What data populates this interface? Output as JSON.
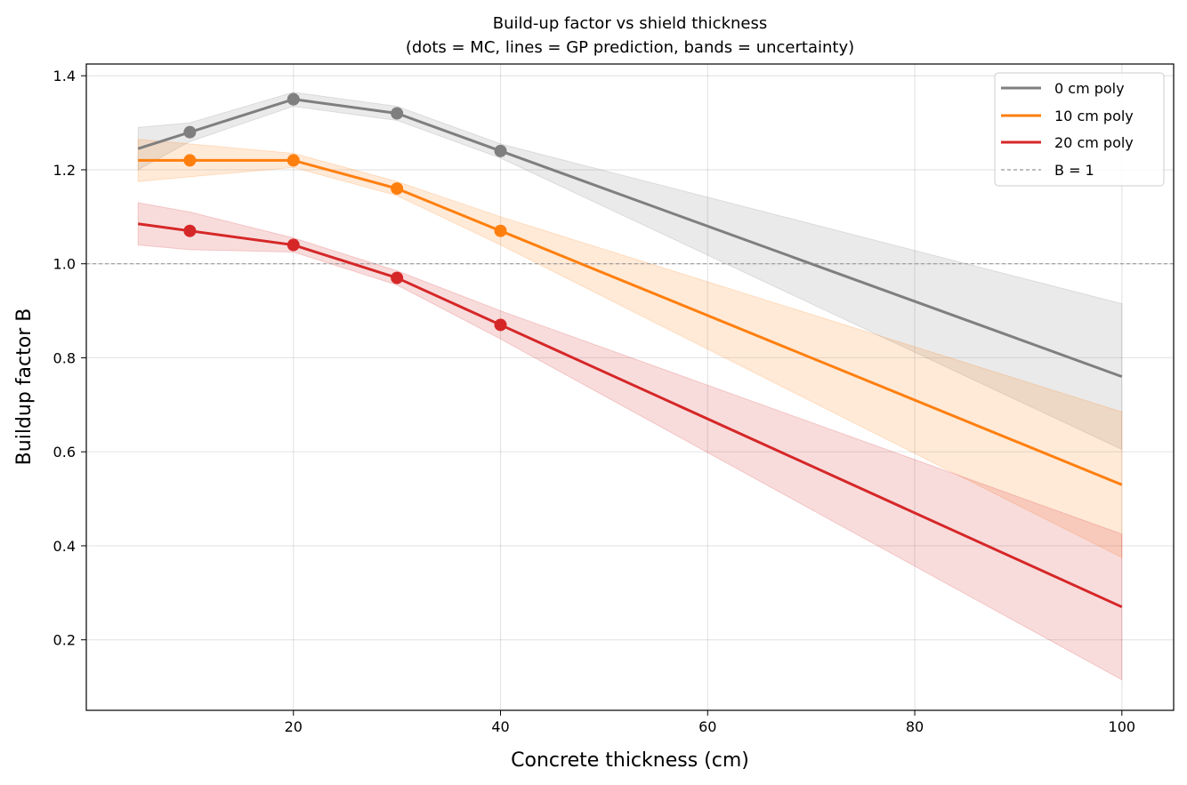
{
  "chart_data": {
    "type": "line",
    "title": "Build-up factor vs shield thickness",
    "subtitle": "(dots = MC, lines = GP prediction, bands = uncertainty)",
    "xlabel": "Concrete thickness (cm)",
    "ylabel": "Buildup factor B",
    "xlim": [
      0,
      105
    ],
    "ylim": [
      0.05,
      1.425
    ],
    "xticks": [
      20,
      40,
      60,
      80,
      100
    ],
    "yticks": [
      0.2,
      0.4,
      0.6,
      0.8,
      1.0,
      1.2,
      1.4
    ],
    "xtick_labels": [
      "20",
      "40",
      "60",
      "80",
      "100"
    ],
    "ytick_labels": [
      "0.2",
      "0.4",
      "0.6",
      "0.8",
      "1.0",
      "1.2",
      "1.4"
    ],
    "grid": true,
    "legend_position": "top-right",
    "reference_line": {
      "label": "B = 1",
      "value": 1.0,
      "color": "#999999"
    },
    "series": [
      {
        "name": "0 cm poly",
        "legend_label": "0 cm poly",
        "color": "#7f7f7f",
        "gp_x": [
          5,
          10,
          20,
          30,
          40,
          100
        ],
        "gp_y": [
          1.245,
          1.28,
          1.35,
          1.32,
          1.24,
          0.76
        ],
        "band_upper": [
          1.29,
          1.3,
          1.365,
          1.335,
          1.255,
          0.915
        ],
        "band_lower": [
          1.2,
          1.26,
          1.335,
          1.305,
          1.225,
          0.605
        ],
        "mc_x": [
          10,
          20,
          30,
          40
        ],
        "mc_y": [
          1.28,
          1.35,
          1.32,
          1.24
        ]
      },
      {
        "name": "10 cm poly",
        "legend_label": "10 cm poly",
        "color": "#ff7f0e",
        "gp_x": [
          5,
          10,
          20,
          30,
          40,
          100
        ],
        "gp_y": [
          1.22,
          1.22,
          1.22,
          1.16,
          1.07,
          0.53
        ],
        "band_upper": [
          1.265,
          1.255,
          1.235,
          1.175,
          1.1,
          0.685
        ],
        "band_lower": [
          1.175,
          1.185,
          1.205,
          1.145,
          1.04,
          0.375
        ],
        "mc_x": [
          10,
          20,
          30,
          40
        ],
        "mc_y": [
          1.22,
          1.22,
          1.16,
          1.07
        ]
      },
      {
        "name": "20 cm poly",
        "legend_label": "20 cm poly",
        "color": "#d62728",
        "gp_x": [
          5,
          10,
          20,
          30,
          40,
          100
        ],
        "gp_y": [
          1.085,
          1.07,
          1.04,
          0.97,
          0.87,
          0.27
        ],
        "band_upper": [
          1.13,
          1.11,
          1.055,
          0.985,
          0.9,
          0.425
        ],
        "band_lower": [
          1.04,
          1.03,
          1.025,
          0.955,
          0.84,
          0.115
        ],
        "mc_x": [
          10,
          20,
          30,
          40
        ],
        "mc_y": [
          1.07,
          1.04,
          0.97,
          0.87
        ]
      }
    ]
  }
}
